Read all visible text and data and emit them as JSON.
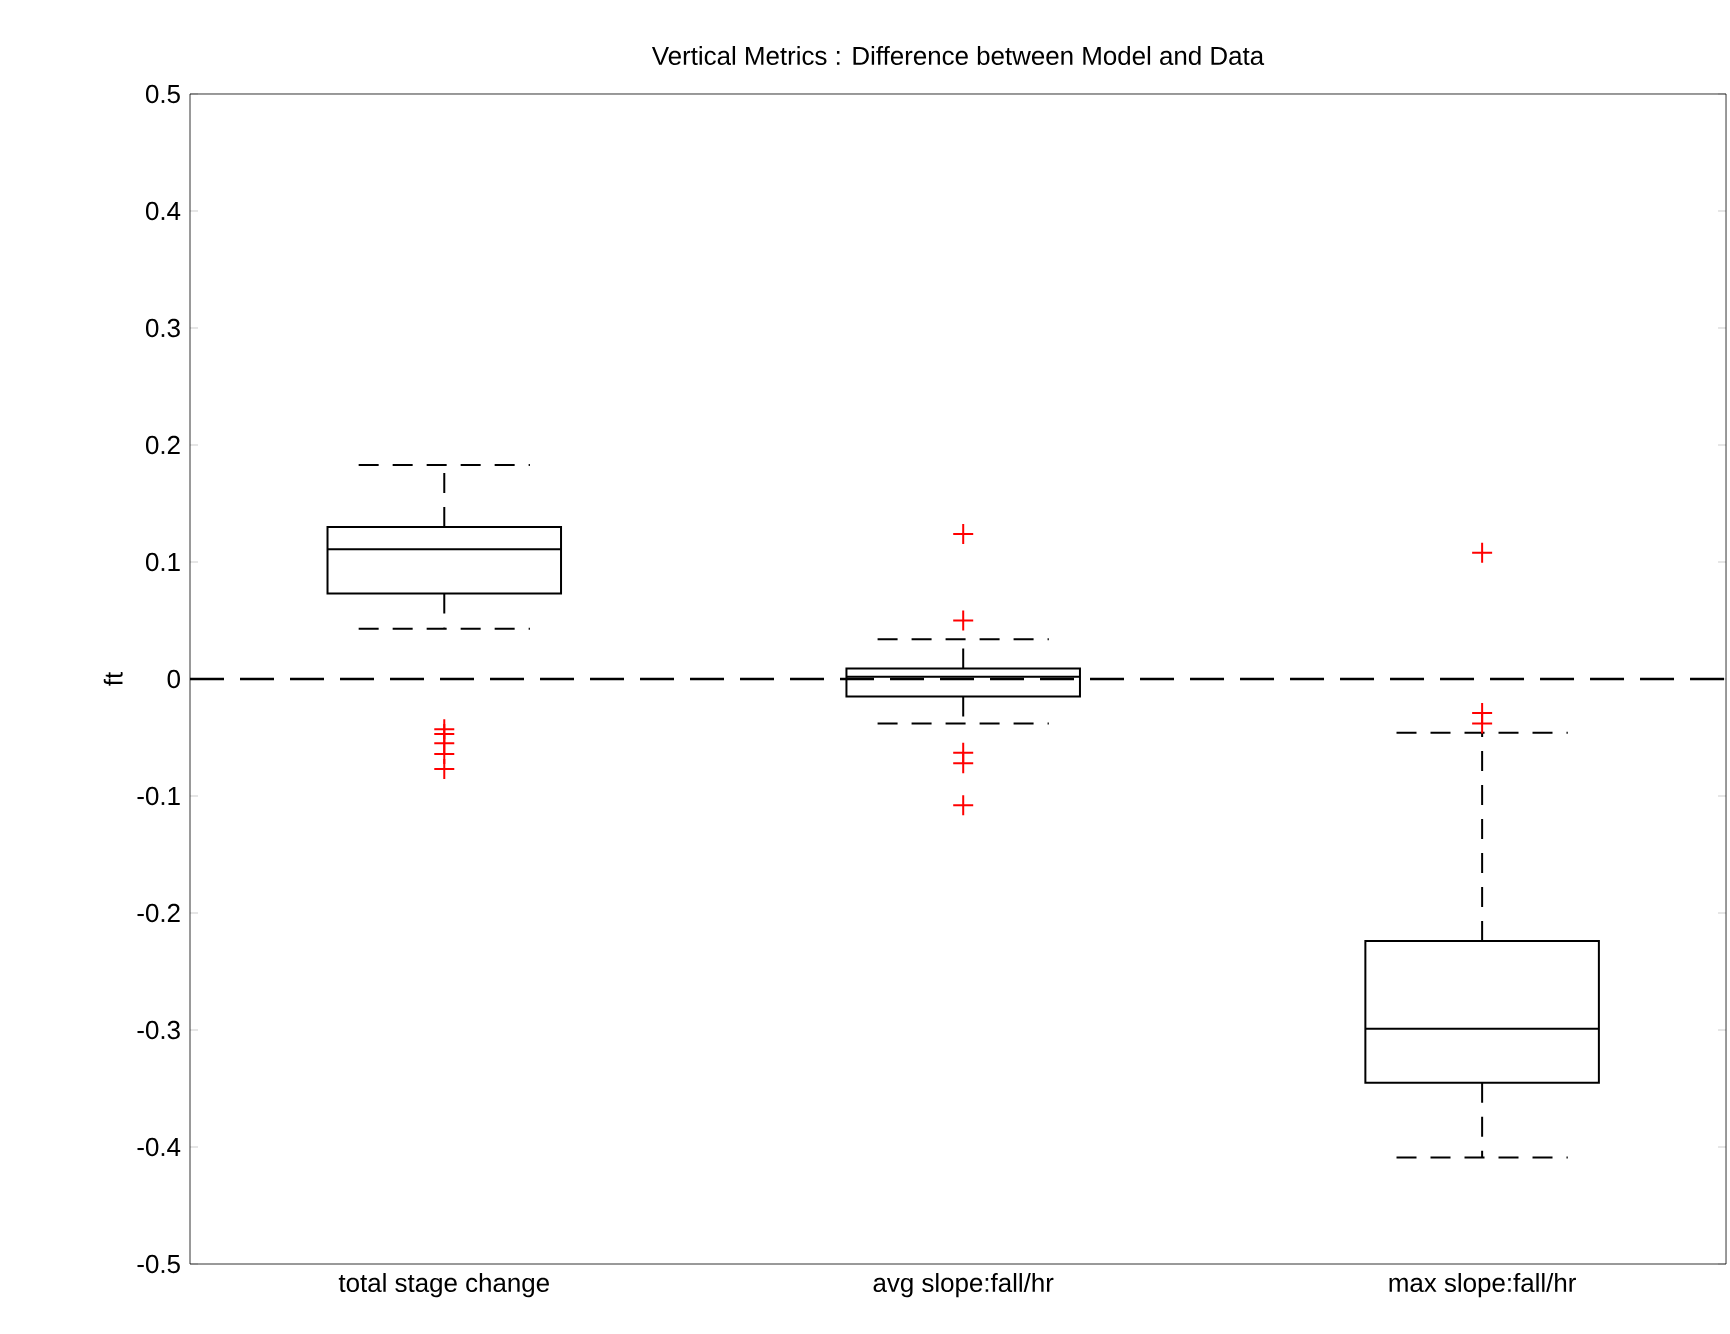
{
  "chart_data": {
    "type": "box",
    "title": "Vertical Metrics : Difference between Model and Data",
    "ylabel": "ft",
    "categories": [
      "total stage change",
      "avg slope:fall/hr",
      "max slope:fall/hr"
    ],
    "series": [
      {
        "color": "#000000",
        "boxes": [
          {
            "low": 0.043,
            "q1": 0.073,
            "median": 0.111,
            "q3": 0.13,
            "high": 0.183,
            "outliers": [
              -0.043,
              -0.047,
              -0.055,
              -0.064,
              -0.077
            ]
          },
          {
            "low": -0.038,
            "q1": -0.015,
            "median": 0.002,
            "q3": 0.009,
            "high": 0.034,
            "outliers": [
              0.124,
              0.05,
              -0.063,
              -0.072,
              -0.108
            ]
          },
          {
            "low": -0.409,
            "q1": -0.345,
            "median": -0.299,
            "q3": -0.224,
            "high": -0.046,
            "outliers": [
              0.108,
              -0.029,
              -0.038
            ]
          }
        ]
      }
    ],
    "ylim": [
      -0.5,
      0.5
    ],
    "yticks": [
      -0.5,
      -0.4,
      -0.3,
      -0.2,
      -0.1,
      0,
      0.1,
      0.2,
      0.3,
      0.4,
      0.5
    ],
    "ref_lines": [
      {
        "axis": "y",
        "value": 0,
        "color": "#000000",
        "line_style": "dashed"
      }
    ],
    "marker": "cross",
    "grid": false
  }
}
